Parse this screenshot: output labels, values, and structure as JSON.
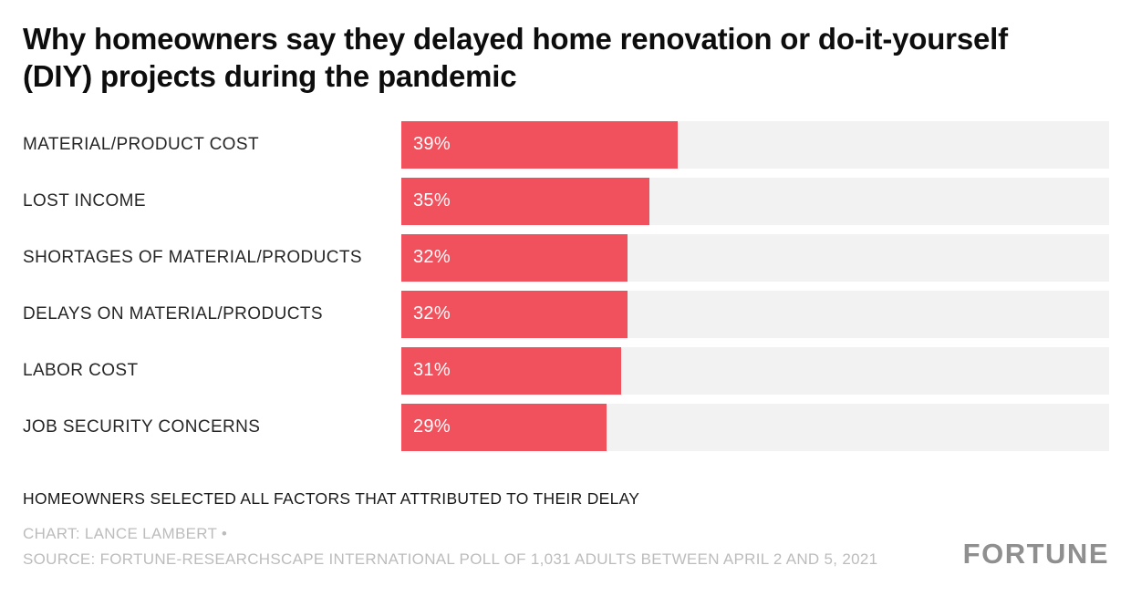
{
  "title": "Why homeowners say they delayed home renovation or do-it-yourself (DIY) projects during the pandemic",
  "chart_data": {
    "type": "bar",
    "orientation": "horizontal",
    "title": "Why homeowners say they delayed home renovation or do-it-yourself (DIY) projects during the pandemic",
    "categories": [
      "MATERIAL/PRODUCT COST",
      "LOST INCOME",
      "SHORTAGES OF MATERIAL/PRODUCTS",
      "DELAYS ON MATERIAL/PRODUCTS",
      "LABOR COST",
      "JOB SECURITY CONCERNS"
    ],
    "values": [
      39,
      35,
      32,
      32,
      31,
      29
    ],
    "value_labels": [
      "39%",
      "35%",
      "32%",
      "32%",
      "31%",
      "29%"
    ],
    "xlim": [
      0,
      100
    ],
    "grid": false,
    "legend": "none",
    "bar_color": "#f1515c",
    "track_color": "#f2f2f2",
    "value_label_color": "#ffffff"
  },
  "footer": {
    "note": "HOMEOWNERS SELECTED ALL FACTORS THAT ATTRIBUTED TO THEIR DELAY",
    "credit": "CHART: LANCE LAMBERT •",
    "source": "SOURCE: FORTUNE-RESEARCHSCAPE INTERNATIONAL POLL OF 1,031 ADULTS BETWEEN APRIL 2 AND 5, 2021",
    "logo": "FORTUNE"
  }
}
